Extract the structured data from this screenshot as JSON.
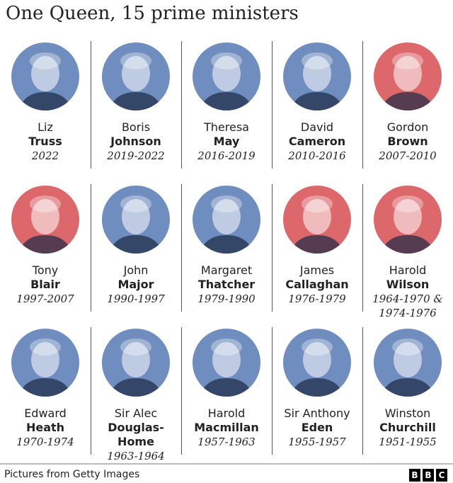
{
  "title": "One Queen, 15 prime ministers",
  "colors": {
    "conservative": "#3f67a8",
    "labour": "#d2363b"
  },
  "prime_ministers": [
    {
      "first": "Liz",
      "last": "Truss",
      "years": "2022",
      "party_color": "#3f67a8",
      "icon": "portrait"
    },
    {
      "first": "Boris",
      "last": "Johnson",
      "years": "2019-2022",
      "party_color": "#3f67a8",
      "icon": "portrait"
    },
    {
      "first": "Theresa",
      "last": "May",
      "years": "2016-2019",
      "party_color": "#3f67a8",
      "icon": "portrait"
    },
    {
      "first": "David",
      "last": "Cameron",
      "years": "2010-2016",
      "party_color": "#3f67a8",
      "icon": "portrait"
    },
    {
      "first": "Gordon",
      "last": "Brown",
      "years": "2007-2010",
      "party_color": "#d2363b",
      "icon": "portrait"
    },
    {
      "first": "Tony",
      "last": "Blair",
      "years": "1997-2007",
      "party_color": "#d2363b",
      "icon": "portrait"
    },
    {
      "first": "John",
      "last": "Major",
      "years": "1990-1997",
      "party_color": "#3f67a8",
      "icon": "portrait"
    },
    {
      "first": "Margaret",
      "last": "Thatcher",
      "years": "1979-1990",
      "party_color": "#3f67a8",
      "icon": "portrait"
    },
    {
      "first": "James",
      "last": "Callaghan",
      "years": "1976-1979",
      "party_color": "#d2363b",
      "icon": "portrait"
    },
    {
      "first": "Harold",
      "last": "Wilson",
      "years": "1964-1970 & 1974-1976",
      "party_color": "#d2363b",
      "icon": "portrait"
    },
    {
      "first": "Edward",
      "last": "Heath",
      "years": "1970-1974",
      "party_color": "#3f67a8",
      "icon": "portrait"
    },
    {
      "first": "Sir Alec",
      "last": "Douglas-Home",
      "years": "1963-1964",
      "party_color": "#3f67a8",
      "icon": "portrait"
    },
    {
      "first": "Harold",
      "last": "Macmillan",
      "years": "1957-1963",
      "party_color": "#3f67a8",
      "icon": "portrait"
    },
    {
      "first": "Sir Anthony",
      "last": "Eden",
      "years": "1955-1957",
      "party_color": "#3f67a8",
      "icon": "portrait"
    },
    {
      "first": "Winston",
      "last": "Churchill",
      "years": "1951-1955",
      "party_color": "#3f67a8",
      "icon": "portrait"
    }
  ],
  "footer": {
    "credit": "Pictures from Getty Images",
    "logo": "BBC"
  }
}
